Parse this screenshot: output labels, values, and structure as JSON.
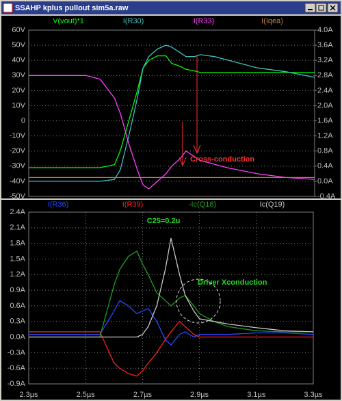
{
  "window_title": "SSAHP kplus pullout sim5a.raw",
  "chart_data": [
    {
      "type": "line",
      "x": [
        2.3,
        2.4,
        2.5,
        2.55,
        2.6,
        2.62,
        2.65,
        2.68,
        2.7,
        2.72,
        2.75,
        2.78,
        2.8,
        2.83,
        2.85,
        2.88,
        2.9,
        2.95,
        3.0,
        3.1,
        3.2,
        3.3
      ],
      "xlim": [
        2.3,
        3.3
      ],
      "ylim": [
        -50,
        60
      ],
      "yticks": [
        {
          "value": 60,
          "label": "60V"
        },
        {
          "value": 50,
          "label": "50V"
        },
        {
          "value": 40,
          "label": "40V"
        },
        {
          "value": 30,
          "label": "30V"
        },
        {
          "value": 20,
          "label": "20V"
        },
        {
          "value": 10,
          "label": "10V"
        },
        0,
        {
          "value": -10,
          "label": "-10V"
        },
        {
          "value": -20,
          "label": "-20V"
        },
        {
          "value": -30,
          "label": "-30V"
        },
        {
          "value": -40,
          "label": "-40V"
        },
        {
          "value": -50,
          "label": "-50V"
        }
      ],
      "y2lim": [
        -0.4,
        4.0
      ],
      "y2ticks": [
        {
          "value": 4.0,
          "label": "4.0A"
        },
        {
          "value": 3.6,
          "label": "3.6A"
        },
        {
          "value": 3.2,
          "label": "3.2A"
        },
        {
          "value": 2.8,
          "label": "2.8A"
        },
        {
          "value": 2.4,
          "label": "2.4A"
        },
        {
          "value": 2.0,
          "label": "2.0A"
        },
        {
          "value": 1.6,
          "label": "1.6A"
        },
        {
          "value": 1.2,
          "label": "1.2A"
        },
        {
          "value": 0.8,
          "label": "0.8A"
        },
        {
          "value": 0.4,
          "label": "0.4A"
        },
        {
          "value": 0.0,
          "label": "0.0A"
        },
        {
          "value": -0.4,
          "label": "-0.4A"
        }
      ],
      "grid": true,
      "series": [
        {
          "name": "V(vout)*1",
          "color": "#00ff00",
          "values": [
            -31,
            -31,
            -31,
            -31,
            -29,
            -20,
            0,
            20,
            35,
            40,
            43,
            43,
            38,
            36,
            34,
            33,
            32,
            32,
            32,
            32,
            32,
            32
          ]
        },
        {
          "name": "I(R30)",
          "color": "#40c0c0",
          "axis": "y2",
          "values": [
            0,
            0,
            0,
            0,
            0.05,
            0.3,
            1.2,
            2.2,
            3.0,
            3.3,
            3.5,
            3.6,
            3.55,
            3.4,
            3.3,
            3.3,
            3.35,
            3.3,
            3.2,
            3.0,
            2.9,
            2.75
          ]
        },
        {
          "name": "I(R33)",
          "color": "#ff40ff",
          "axis": "y2",
          "values": [
            2.8,
            2.8,
            2.8,
            2.7,
            2.2,
            1.8,
            1.0,
            0.3,
            -0.1,
            -0.2,
            0.0,
            0.2,
            0.4,
            0.6,
            0.8,
            0.65,
            0.55,
            0.45,
            0.35,
            0.2,
            0.1,
            0.05
          ]
        },
        {
          "name": "I(Iqea)",
          "color": "#c08040",
          "axis": "y2",
          "values": [
            0.1,
            0.1,
            0.1,
            0.1,
            0.1,
            0.1,
            0.1,
            0.1,
            0.1,
            0.1,
            0.1,
            0.1,
            0.1,
            0.1,
            0.1,
            0.1,
            0.1,
            0.1,
            0.1,
            0.1,
            0.1,
            0.1
          ]
        }
      ],
      "annotations": [
        {
          "text": "Cross-conduction",
          "color": "#ff3030"
        }
      ]
    },
    {
      "type": "line",
      "x": [
        2.3,
        2.4,
        2.5,
        2.55,
        2.6,
        2.62,
        2.65,
        2.68,
        2.7,
        2.72,
        2.75,
        2.78,
        2.8,
        2.83,
        2.85,
        2.88,
        2.9,
        2.95,
        3.0,
        3.1,
        3.2,
        3.3
      ],
      "xlim": [
        2.3,
        3.3
      ],
      "xticks": [
        {
          "value": 2.3,
          "label": "2.3µs"
        },
        {
          "value": 2.5,
          "label": "2.5µs"
        },
        {
          "value": 2.7,
          "label": "2.7µs"
        },
        {
          "value": 2.9,
          "label": "2.9µs"
        },
        {
          "value": 3.1,
          "label": "3.1µs"
        },
        {
          "value": 3.3,
          "label": "3.3µs"
        }
      ],
      "ylim": [
        -0.9,
        2.4
      ],
      "yticks": [
        {
          "value": 2.4,
          "label": "2.4A"
        },
        {
          "value": 2.1,
          "label": "2.1A"
        },
        {
          "value": 1.8,
          "label": "1.8A"
        },
        {
          "value": 1.5,
          "label": "1.5A"
        },
        {
          "value": 1.2,
          "label": "1.2A"
        },
        {
          "value": 0.9,
          "label": "0.9A"
        },
        {
          "value": 0.6,
          "label": "0.6A"
        },
        {
          "value": 0.3,
          "label": "0.3A"
        },
        {
          "value": 0.0,
          "label": "0.0A"
        },
        {
          "value": -0.3,
          "label": "-0.3A"
        },
        {
          "value": -0.6,
          "label": "-0.6A"
        },
        {
          "value": -0.9,
          "label": "-0.9A"
        }
      ],
      "grid": true,
      "series": [
        {
          "name": "I(R36)",
          "color": "#2848ff",
          "values": [
            0.05,
            0.05,
            0.05,
            0.05,
            0.5,
            0.7,
            0.6,
            0.45,
            0.5,
            0.55,
            0.3,
            -0.05,
            -0.15,
            0.05,
            0.1,
            0.0,
            0.05,
            0.05,
            0.05,
            0.08,
            0.08,
            0.05
          ]
        },
        {
          "name": "I(R39)",
          "color": "#ff2020",
          "values": [
            0.1,
            0.1,
            0.1,
            0.1,
            -0.5,
            -0.6,
            -0.7,
            -0.75,
            -0.65,
            -0.5,
            -0.3,
            -0.05,
            0.1,
            0.3,
            0.2,
            0.05,
            0.0,
            0.0,
            0.0,
            0.0,
            0.0,
            0.0
          ]
        },
        {
          "name": "-Ic(Q18)",
          "color": "#20a020",
          "values": [
            0.0,
            0.0,
            0.0,
            0.0,
            1.0,
            1.3,
            1.55,
            1.65,
            1.4,
            1.2,
            0.85,
            0.7,
            0.6,
            0.75,
            0.8,
            0.6,
            0.45,
            0.3,
            0.2,
            0.12,
            0.1,
            0.1
          ]
        },
        {
          "name": "Ic(Q19)",
          "color": "#c8c8c8",
          "values": [
            0.0,
            0.0,
            0.0,
            0.0,
            0.0,
            0.0,
            0.0,
            0.0,
            0.05,
            0.2,
            0.6,
            1.3,
            1.9,
            1.2,
            0.8,
            0.5,
            0.35,
            0.3,
            0.25,
            0.18,
            0.12,
            0.1
          ]
        }
      ],
      "annotations": [
        {
          "text": "C25=0.2u",
          "color": "#20e020"
        },
        {
          "text": "Driver Xconduction",
          "color": "#20e020"
        }
      ]
    }
  ]
}
